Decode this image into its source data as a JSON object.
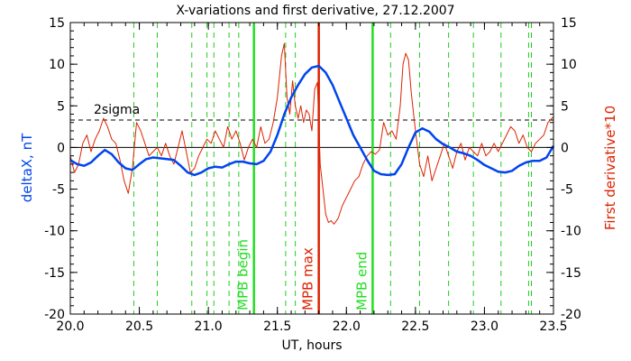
{
  "chart_data": {
    "type": "line",
    "title": "X-variations and first derivative, 27.12.2007",
    "xlabel": "UT, hours",
    "ylabel_left": "deltaX, nT",
    "ylabel_right": "First derivative*10",
    "xlim": [
      20.0,
      23.5
    ],
    "ylim": [
      -20,
      15
    ],
    "x_ticks": [
      20.0,
      20.5,
      21.0,
      21.5,
      22.0,
      22.5,
      23.0,
      23.5
    ],
    "x_tick_labels": [
      "20.0",
      "20.5",
      "21.0",
      "21.5",
      "22.0",
      "22.5",
      "23.0",
      "23.5"
    ],
    "y_ticks": [
      -20,
      -15,
      -10,
      -5,
      0,
      5,
      10,
      15
    ],
    "y_tick_labels": [
      "-20",
      "-15",
      "-10",
      "-5",
      "0",
      "5",
      "10",
      "15"
    ],
    "threshold": {
      "label": "2sigma",
      "value": 3.3
    },
    "dashed_vlines": [
      20.46,
      20.63,
      20.88,
      20.99,
      21.04,
      21.15,
      21.22,
      21.56,
      21.63,
      22.32,
      22.53,
      22.74,
      22.92,
      23.12,
      23.32,
      23.34
    ],
    "markers": [
      {
        "label": "MPB begin",
        "x": 21.33,
        "color": "#22dd22"
      },
      {
        "label": "MPB max",
        "x": 21.8,
        "color": "#dd2200"
      },
      {
        "label": "MPB end",
        "x": 22.19,
        "color": "#22dd22"
      }
    ],
    "series": [
      {
        "name": "deltaX",
        "color": "#0044ee",
        "x": [
          20.0,
          20.05,
          20.1,
          20.15,
          20.2,
          20.25,
          20.3,
          20.35,
          20.4,
          20.45,
          20.5,
          20.55,
          20.6,
          20.65,
          20.7,
          20.75,
          20.8,
          20.85,
          20.9,
          20.95,
          21.0,
          21.05,
          21.1,
          21.15,
          21.2,
          21.25,
          21.3,
          21.35,
          21.4,
          21.45,
          21.5,
          21.55,
          21.6,
          21.65,
          21.7,
          21.75,
          21.8,
          21.85,
          21.9,
          21.95,
          22.0,
          22.05,
          22.1,
          22.15,
          22.2,
          22.25,
          22.3,
          22.35,
          22.4,
          22.45,
          22.5,
          22.55,
          22.6,
          22.65,
          22.7,
          22.75,
          22.8,
          22.85,
          22.9,
          22.95,
          23.0,
          23.05,
          23.1,
          23.15,
          23.2,
          23.25,
          23.3,
          23.35,
          23.4,
          23.45,
          23.5
        ],
        "values": [
          -1.5,
          -2.0,
          -2.2,
          -1.8,
          -1.0,
          -0.3,
          -0.8,
          -1.8,
          -2.5,
          -2.7,
          -2.0,
          -1.4,
          -1.2,
          -1.3,
          -1.4,
          -1.5,
          -2.2,
          -3.0,
          -3.3,
          -3.0,
          -2.5,
          -2.3,
          -2.4,
          -2.0,
          -1.7,
          -1.7,
          -1.9,
          -2.0,
          -1.6,
          -0.5,
          1.5,
          4.0,
          6.0,
          7.5,
          8.8,
          9.6,
          9.8,
          9.0,
          7.5,
          5.5,
          3.5,
          1.5,
          0.0,
          -1.5,
          -2.8,
          -3.2,
          -3.3,
          -3.2,
          -2.0,
          0.0,
          1.8,
          2.3,
          1.9,
          1.0,
          0.4,
          0.0,
          -0.5,
          -0.7,
          -1.0,
          -1.5,
          -2.1,
          -2.5,
          -2.9,
          -3.0,
          -2.8,
          -2.2,
          -1.8,
          -1.6,
          -1.6,
          -1.2,
          0.2
        ]
      },
      {
        "name": "First derivative*10",
        "color": "#dd2200",
        "x": [
          20.0,
          20.03,
          20.06,
          20.09,
          20.12,
          20.15,
          20.18,
          20.21,
          20.24,
          20.27,
          20.3,
          20.33,
          20.36,
          20.39,
          20.42,
          20.45,
          20.48,
          20.51,
          20.54,
          20.57,
          20.6,
          20.63,
          20.66,
          20.69,
          20.72,
          20.75,
          20.78,
          20.81,
          20.84,
          20.87,
          20.9,
          20.93,
          20.96,
          20.99,
          21.02,
          21.05,
          21.08,
          21.11,
          21.14,
          21.17,
          21.2,
          21.23,
          21.26,
          21.29,
          21.32,
          21.35,
          21.38,
          21.41,
          21.44,
          21.47,
          21.5,
          21.53,
          21.55,
          21.57,
          21.59,
          21.61,
          21.63,
          21.65,
          21.67,
          21.69,
          21.71,
          21.73,
          21.75,
          21.77,
          21.79,
          21.8,
          21.81,
          21.83,
          21.85,
          21.87,
          21.89,
          21.91,
          21.94,
          21.97,
          22.0,
          22.03,
          22.06,
          22.09,
          22.12,
          22.15,
          22.18,
          22.21,
          22.24,
          22.27,
          22.3,
          22.33,
          22.36,
          22.39,
          22.41,
          22.43,
          22.45,
          22.47,
          22.5,
          22.53,
          22.56,
          22.59,
          22.62,
          22.65,
          22.68,
          22.71,
          22.74,
          22.77,
          22.8,
          22.83,
          22.86,
          22.89,
          22.92,
          22.95,
          22.98,
          23.01,
          23.04,
          23.07,
          23.1,
          23.13,
          23.16,
          23.19,
          23.22,
          23.25,
          23.28,
          23.31,
          23.34,
          23.37,
          23.4,
          23.43,
          23.46,
          23.5
        ],
        "values": [
          -1.0,
          -3.0,
          -2.0,
          0.5,
          1.5,
          -0.5,
          1.0,
          2.0,
          3.5,
          2.5,
          1.0,
          0.5,
          -1.5,
          -4.0,
          -5.5,
          -2.5,
          3.0,
          2.0,
          0.5,
          -1.0,
          -0.5,
          0.0,
          -1.0,
          0.5,
          -1.0,
          -2.0,
          0.0,
          2.0,
          -0.5,
          -3.0,
          -2.5,
          -1.0,
          0.0,
          1.0,
          0.5,
          2.0,
          1.0,
          0.0,
          2.5,
          1.0,
          2.0,
          0.5,
          -1.5,
          0.0,
          1.0,
          0.0,
          2.5,
          0.5,
          1.0,
          3.0,
          6.0,
          11.0,
          12.5,
          6.0,
          4.0,
          8.0,
          5.0,
          3.5,
          5.0,
          3.0,
          4.5,
          4.0,
          2.0,
          7.0,
          7.8,
          3.0,
          -2.0,
          -5.0,
          -8.0,
          -9.0,
          -8.8,
          -9.2,
          -8.5,
          -7.0,
          -6.0,
          -5.0,
          -4.0,
          -3.5,
          -2.0,
          -1.0,
          -0.5,
          -0.8,
          -0.3,
          3.0,
          1.5,
          2.0,
          1.0,
          5.0,
          10.0,
          11.3,
          10.5,
          6.5,
          2.0,
          -2.0,
          -3.5,
          -1.0,
          -4.0,
          -2.5,
          -1.0,
          0.5,
          -1.0,
          -2.5,
          -0.5,
          0.5,
          -1.5,
          0.0,
          -0.5,
          -1.0,
          0.5,
          -1.0,
          -0.5,
          0.5,
          -0.5,
          0.5,
          1.5,
          2.5,
          2.0,
          0.5,
          1.5,
          0.0,
          -0.5,
          0.5,
          1.0,
          1.5,
          3.0,
          3.7
        ]
      }
    ]
  }
}
